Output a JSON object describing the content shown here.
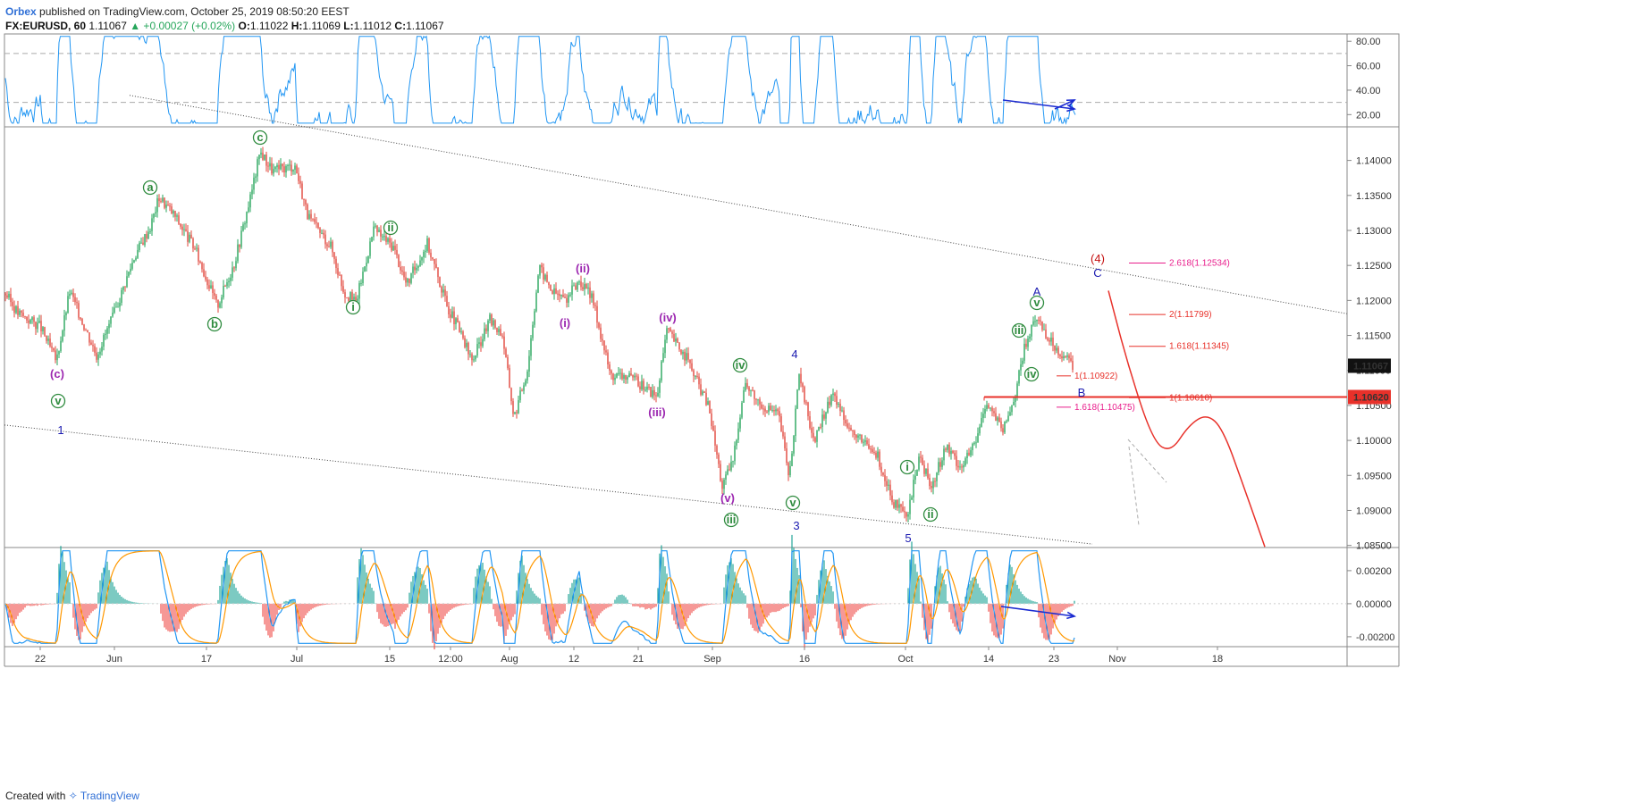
{
  "header": {
    "brand": "Orbex",
    "published": " published on TradingView.com, October 25, 2019 08:50:20 EEST",
    "symbol": "FX:EURUSD, 60",
    "last": "1.11067",
    "change": "▲ +0.00027 (+0.02%)",
    "open_label": "O:",
    "open": "1.11022",
    "high_label": "H:",
    "high": "1.11069",
    "low_label": "L:",
    "low": "1.11012",
    "close_label": "C:",
    "close": "1.11067"
  },
  "footer": {
    "created": "Created with",
    "tv": "TradingView"
  },
  "colors": {
    "candle_up": "#26a65b",
    "candle_down": "#e0443a",
    "rsi": "#2196f3",
    "wave_green": "#2e8b3e",
    "wave_purple": "#9c27b0",
    "wave_blue": "#1a1ab0",
    "red": "#e8312a",
    "magenta": "#e91e8c"
  },
  "chart_data": {
    "type": "candlestick",
    "x_ticks": [
      "22",
      "Jun",
      "17",
      "Jul",
      "15",
      "12:00",
      "Aug",
      "12",
      "21",
      "Sep",
      "16",
      "Oct",
      "14",
      "23",
      "Nov",
      "18"
    ],
    "price_axis": {
      "ticks": [
        "1.14000",
        "1.13500",
        "1.13000",
        "1.12500",
        "1.12000",
        "1.11500",
        "1.11000",
        "1.10500",
        "1.10000",
        "1.09500",
        "1.09000",
        "1.08500"
      ],
      "ylim": [
        1.0847,
        1.1448
      ]
    },
    "last_price_tag": "1.11067",
    "level_tag": "1.10620",
    "level_price": 1.1062,
    "rsi_axis": {
      "ticks": [
        "80.00",
        "60.00",
        "40.00",
        "20.00"
      ],
      "ylim": [
        10,
        86
      ],
      "bands": [
        70,
        30
      ]
    },
    "macd_axis": {
      "ticks": [
        "0.00200",
        "0.00000",
        "-0.00200"
      ],
      "ylim": [
        -0.0026,
        0.0034
      ]
    },
    "price_path": [
      [
        0,
        1.1222
      ],
      [
        20,
        1.1182
      ],
      [
        45,
        1.1163
      ],
      [
        63,
        1.1113
      ],
      [
        78,
        1.1213
      ],
      [
        108,
        1.1122
      ],
      [
        128,
        1.1182
      ],
      [
        150,
        1.1262
      ],
      [
        168,
        1.1305
      ],
      [
        178,
        1.1348
      ],
      [
        195,
        1.1322
      ],
      [
        218,
        1.1274
      ],
      [
        243,
        1.1192
      ],
      [
        262,
        1.1253
      ],
      [
        281,
        1.1352
      ],
      [
        291,
        1.1413
      ],
      [
        305,
        1.1385
      ],
      [
        330,
        1.1393
      ],
      [
        345,
        1.1318
      ],
      [
        370,
        1.1278
      ],
      [
        385,
        1.1212
      ],
      [
        398,
        1.1197
      ],
      [
        418,
        1.1302
      ],
      [
        440,
        1.1277
      ],
      [
        455,
        1.1222
      ],
      [
        478,
        1.1282
      ],
      [
        500,
        1.1193
      ],
      [
        512,
        1.1162
      ],
      [
        528,
        1.1113
      ],
      [
        548,
        1.1172
      ],
      [
        562,
        1.1152
      ],
      [
        575,
        1.1032
      ],
      [
        590,
        1.1102
      ],
      [
        603,
        1.1248
      ],
      [
        618,
        1.1213
      ],
      [
        633,
        1.1202
      ],
      [
        648,
        1.1228
      ],
      [
        663,
        1.1202
      ],
      [
        683,
        1.1093
      ],
      [
        700,
        1.1092
      ],
      [
        720,
        1.1078
      ],
      [
        735,
        1.1062
      ],
      [
        746,
        1.1158
      ],
      [
        768,
        1.1118
      ],
      [
        793,
        1.1048
      ],
      [
        808,
        1.0933
      ],
      [
        820,
        1.0972
      ],
      [
        833,
        1.1082
      ],
      [
        850,
        1.1053
      ],
      [
        871,
        1.1038
      ],
      [
        883,
        1.0947
      ],
      [
        894,
        1.1092
      ],
      [
        911,
        1.0997
      ],
      [
        931,
        1.1068
      ],
      [
        955,
        1.1008
      ],
      [
        982,
        1.0978
      ],
      [
        998,
        1.0913
      ],
      [
        1015,
        1.0888
      ],
      [
        1028,
        1.0978
      ],
      [
        1042,
        1.0932
      ],
      [
        1058,
        1.0992
      ],
      [
        1075,
        1.0962
      ],
      [
        1092,
        1.0998
      ],
      [
        1103,
        1.1058
      ],
      [
        1122,
        1.1013
      ],
      [
        1136,
        1.1068
      ],
      [
        1146,
        1.1132
      ],
      [
        1160,
        1.1177
      ],
      [
        1175,
        1.1142
      ],
      [
        1190,
        1.1122
      ],
      [
        1200,
        1.1107
      ]
    ],
    "rsi_seed": 7,
    "macd_seed": 11,
    "trendlines": [
      {
        "name": "upper",
        "from": [
          145,
          1.1493
        ],
        "to": [
          1507,
          1.1181
        ]
      },
      {
        "name": "lower",
        "from": [
          5,
          1.1022
        ],
        "to": [
          1222,
          1.0852
        ]
      }
    ],
    "horizontal_level": {
      "from_x": 1101,
      "to_x": 1507,
      "price": 1.1062
    },
    "projection_path": [
      [
        1240,
        1.1214
      ],
      [
        1262,
        1.1107
      ],
      [
        1290,
        1.0998
      ],
      [
        1310,
        1.0983
      ],
      [
        1330,
        1.1022
      ],
      [
        1350,
        1.1038
      ],
      [
        1368,
        1.1017
      ],
      [
        1392,
        1.0932
      ],
      [
        1415,
        1.0848
      ]
    ],
    "fib_levels": [
      {
        "label": "2.618(1.12534)",
        "price": 1.12534,
        "x1": 1263,
        "x2": 1304,
        "lx": 1308,
        "color": "magenta"
      },
      {
        "label": "2(1.11799)",
        "price": 1.11799,
        "x1": 1263,
        "x2": 1304,
        "lx": 1308,
        "color": "red"
      },
      {
        "label": "1.618(1.11345)",
        "price": 1.11345,
        "x1": 1263,
        "x2": 1304,
        "lx": 1308,
        "color": "red"
      },
      {
        "label": "1(1.10922)",
        "price": 1.10922,
        "x1": 1182,
        "x2": 1198,
        "lx": 1202,
        "color": "red"
      },
      {
        "label": "1(1.10610)",
        "price": 1.1061,
        "x1": 1263,
        "x2": 1304,
        "lx": 1308,
        "color": "red"
      },
      {
        "label": "1.618(1.10475)",
        "price": 1.10475,
        "x1": 1182,
        "x2": 1198,
        "lx": 1202,
        "color": "magenta"
      }
    ],
    "wave_labels": [
      {
        "t": "c",
        "x": 291,
        "y": 154,
        "style": "green-circle"
      },
      {
        "t": "a",
        "x": 168,
        "y": 210,
        "style": "green-circle"
      },
      {
        "t": "b",
        "x": 240,
        "y": 363,
        "style": "green-circle"
      },
      {
        "t": "ii",
        "x": 437,
        "y": 255,
        "style": "green-circle"
      },
      {
        "t": "i",
        "x": 395,
        "y": 344,
        "style": "green-circle"
      },
      {
        "t": "(c)",
        "x": 64,
        "y": 418,
        "style": "purple"
      },
      {
        "t": "v",
        "x": 65,
        "y": 449,
        "style": "green-circle"
      },
      {
        "t": "1",
        "x": 68,
        "y": 481,
        "style": "blue"
      },
      {
        "t": "(ii)",
        "x": 652,
        "y": 300,
        "style": "purple"
      },
      {
        "t": "(i)",
        "x": 632,
        "y": 361,
        "style": "purple"
      },
      {
        "t": "(iv)",
        "x": 747,
        "y": 355,
        "style": "purple"
      },
      {
        "t": "(iii)",
        "x": 735,
        "y": 461,
        "style": "purple"
      },
      {
        "t": "iv",
        "x": 828,
        "y": 409,
        "style": "green-circle"
      },
      {
        "t": "(v)",
        "x": 814,
        "y": 557,
        "style": "purple"
      },
      {
        "t": "iii",
        "x": 818,
        "y": 582,
        "style": "green-circle"
      },
      {
        "t": "4",
        "x": 889,
        "y": 396,
        "style": "blue"
      },
      {
        "t": "v",
        "x": 887,
        "y": 563,
        "style": "green-circle"
      },
      {
        "t": "3",
        "x": 891,
        "y": 588,
        "style": "blue"
      },
      {
        "t": "i",
        "x": 1015,
        "y": 523,
        "style": "green-circle"
      },
      {
        "t": "ii",
        "x": 1041,
        "y": 576,
        "style": "green-circle"
      },
      {
        "t": "5",
        "x": 1016,
        "y": 602,
        "style": "blue"
      },
      {
        "t": "iii",
        "x": 1140,
        "y": 370,
        "style": "green-circle"
      },
      {
        "t": "iv",
        "x": 1154,
        "y": 419,
        "style": "green-circle"
      },
      {
        "t": "A",
        "x": 1160,
        "y": 326,
        "style": "blue"
      },
      {
        "t": "v",
        "x": 1160,
        "y": 339,
        "style": "green-circle"
      },
      {
        "t": "B",
        "x": 1210,
        "y": 439,
        "style": "blue"
      },
      {
        "t": "(4)",
        "x": 1228,
        "y": 289,
        "style": "red"
      },
      {
        "t": "C",
        "x": 1228,
        "y": 305,
        "style": "blue"
      }
    ],
    "divergence_arrows": [
      {
        "pane": "rsi",
        "from": [
          1122,
          112
        ],
        "to": [
          1202,
          122
        ]
      },
      {
        "pane": "rsi",
        "from": [
          1180,
          122
        ],
        "to": [
          1202,
          112
        ]
      },
      {
        "pane": "macd",
        "from": [
          1120,
          679
        ],
        "to": [
          1202,
          690
        ]
      }
    ],
    "gray_dashes": [
      [
        1262,
        492,
        1305,
        540
      ],
      [
        1263,
        500,
        1274,
        588
      ]
    ]
  }
}
